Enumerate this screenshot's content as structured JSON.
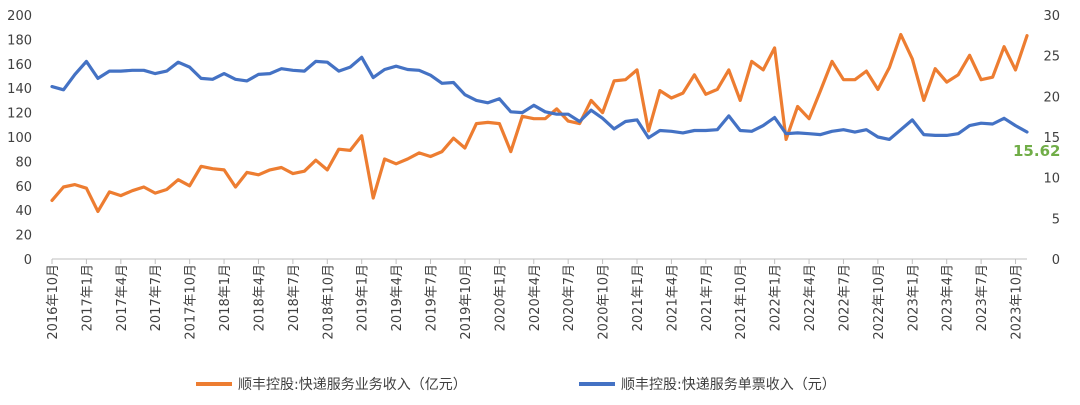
{
  "chart_data": {
    "type": "line",
    "grid": false,
    "legend_position": "bottom",
    "x": [
      "2016年10月",
      "2016年11月",
      "2016年12月",
      "2017年1月",
      "2017年2月",
      "2017年3月",
      "2017年4月",
      "2017年5月",
      "2017年6月",
      "2017年7月",
      "2017年8月",
      "2017年9月",
      "2017年10月",
      "2017年11月",
      "2017年12月",
      "2018年1月",
      "2018年2月",
      "2018年3月",
      "2018年4月",
      "2018年5月",
      "2018年6月",
      "2018年7月",
      "2018年8月",
      "2018年9月",
      "2018年10月",
      "2018年11月",
      "2018年12月",
      "2019年1月",
      "2019年2月",
      "2019年3月",
      "2019年4月",
      "2019年5月",
      "2019年6月",
      "2019年7月",
      "2019年8月",
      "2019年9月",
      "2019年10月",
      "2019年11月",
      "2019年12月",
      "2020年1月",
      "2020年2月",
      "2020年3月",
      "2020年4月",
      "2020年5月",
      "2020年6月",
      "2020年7月",
      "2020年8月",
      "2020年9月",
      "2020年10月",
      "2020年11月",
      "2020年12月",
      "2021年1月",
      "2021年2月",
      "2021年3月",
      "2021年4月",
      "2021年5月",
      "2021年6月",
      "2021年7月",
      "2021年8月",
      "2021年9月",
      "2021年10月",
      "2021年11月",
      "2021年12月",
      "2022年1月",
      "2022年2月",
      "2022年3月",
      "2022年4月",
      "2022年5月",
      "2022年6月",
      "2022年7月",
      "2022年8月",
      "2022年9月",
      "2022年10月",
      "2022年11月",
      "2022年12月",
      "2023年1月",
      "2023年2月",
      "2023年3月",
      "2023年4月",
      "2023年5月",
      "2023年6月",
      "2023年7月",
      "2023年8月",
      "2023年9月",
      "2023年10月",
      "2023年11月"
    ],
    "x_tick_labels": [
      "2016年10月",
      "2017年1月",
      "2017年4月",
      "2017年7月",
      "2017年10月",
      "2018年1月",
      "2018年4月",
      "2018年7月",
      "2018年10月",
      "2019年1月",
      "2019年4月",
      "2019年7月",
      "2019年10月",
      "2020年1月",
      "2020年4月",
      "2020年7月",
      "2020年10月",
      "2021年1月",
      "2021年4月",
      "2021年7月",
      "2021年10月",
      "2022年1月",
      "2022年4月",
      "2022年7月",
      "2022年10月",
      "2023年1月",
      "2023年4月",
      "2023年7月",
      "2023年10月"
    ],
    "y_left": {
      "lim": [
        0,
        200
      ],
      "ticks": [
        "0",
        "20",
        "40",
        "60",
        "80",
        "100",
        "120",
        "140",
        "160",
        "180",
        "200"
      ]
    },
    "y_right": {
      "lim": [
        0,
        30
      ],
      "ticks": [
        "0",
        "5",
        "10",
        "15",
        "20",
        "25",
        "30"
      ]
    },
    "series": [
      {
        "name": "顺丰控股:快递服务业务收入（亿元）",
        "axis": "left",
        "color": "#ED7D31",
        "values": [
          48,
          59,
          61,
          58,
          39,
          55,
          52,
          56,
          59,
          54,
          57,
          65,
          60,
          76,
          74,
          73,
          59,
          71,
          69,
          73,
          75,
          70,
          72,
          81,
          73,
          90,
          89,
          101,
          50,
          82,
          78,
          82,
          87,
          84,
          88,
          99,
          91,
          111,
          112,
          111,
          88,
          117,
          115,
          115,
          123,
          113,
          111,
          130,
          120,
          146,
          147,
          155,
          105,
          138,
          132,
          136,
          151,
          135,
          139,
          155,
          130,
          162,
          155,
          173,
          98,
          125,
          115,
          138,
          162,
          147,
          147,
          154,
          139,
          157,
          184,
          164,
          130,
          156,
          145,
          151,
          167,
          147,
          149,
          174,
          155,
          183
        ]
      },
      {
        "name": "顺丰控股:快递服务单票收入（元）",
        "axis": "right",
        "color": "#4472C4",
        "values": [
          21.2,
          20.8,
          22.7,
          24.3,
          22.2,
          23.1,
          23.1,
          23.2,
          23.2,
          22.8,
          23.1,
          24.2,
          23.6,
          22.2,
          22.1,
          22.8,
          22.1,
          21.9,
          22.7,
          22.8,
          23.4,
          23.2,
          23.1,
          24.3,
          24.2,
          23.1,
          23.6,
          24.8,
          22.3,
          23.3,
          23.7,
          23.3,
          23.2,
          22.6,
          21.6,
          21.7,
          20.2,
          19.5,
          19.2,
          19.7,
          18.1,
          18.0,
          18.9,
          18.1,
          17.8,
          17.8,
          16.9,
          18.3,
          17.3,
          16.0,
          16.9,
          17.1,
          14.9,
          15.8,
          15.7,
          15.5,
          15.8,
          15.8,
          15.9,
          17.6,
          15.8,
          15.7,
          16.4,
          17.4,
          15.4,
          15.5,
          15.4,
          15.3,
          15.7,
          15.9,
          15.6,
          15.9,
          15.0,
          14.7,
          15.9,
          17.1,
          15.3,
          15.2,
          15.2,
          15.4,
          16.4,
          16.7,
          16.6,
          17.3,
          16.4,
          15.62
        ]
      }
    ],
    "annotations": [
      {
        "text": "15.62",
        "color": "#70AD47"
      }
    ]
  }
}
